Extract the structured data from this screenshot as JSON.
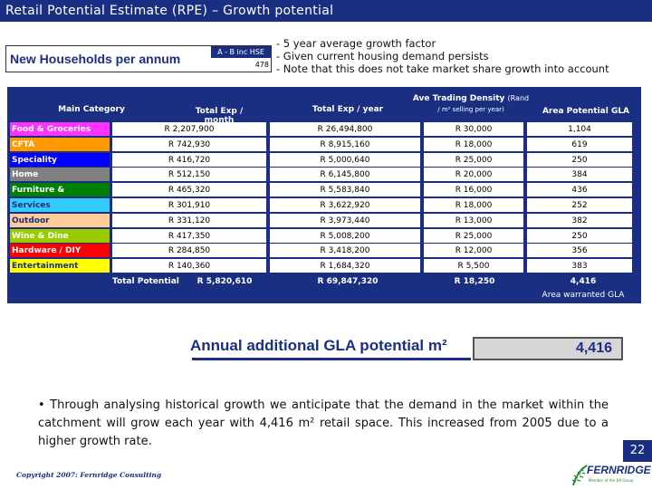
{
  "title": "Retail Potential Estimate (RPE) – Growth potential",
  "new_households": {
    "label": "New Households per annum",
    "header": "A - B inc HSE",
    "value": "478"
  },
  "notes": [
    "- 5 year average growth factor",
    "- Given current housing demand persists",
    "- Note that this does not take market share growth into account"
  ],
  "table": {
    "headers": {
      "main_category": "Main Category",
      "total_exp_month": "Total Exp / month",
      "total_exp_year": "Total Exp / year",
      "ave_trading_density": "Ave Trading Density",
      "ave_trading_density_unit": "(Rand",
      "ave_trading_density_sub": "/ m² selling per year)",
      "area_potential_gla": "Area Potential GLA"
    },
    "rows": [
      {
        "category": "Food & Groceries",
        "color": "#ff33ff",
        "text_color": "#ffffff",
        "exp_month": "R 2,207,900",
        "exp_year": "R 26,494,800",
        "density": "R 30,000",
        "gla": "1,104"
      },
      {
        "category": "CFTA",
        "color": "#ff9900",
        "text_color": "#ffffff",
        "exp_month": "R 742,930",
        "exp_year": "R 8,915,160",
        "density": "R 18,000",
        "gla": "619"
      },
      {
        "category": "Speciality",
        "color": "#0000ff",
        "text_color": "#ffffff",
        "exp_month": "R 416,720",
        "exp_year": "R 5,000,640",
        "density": "R 25,000",
        "gla": "250"
      },
      {
        "category": "Home",
        "color": "#808080",
        "text_color": "#ffffff",
        "exp_month": "R 512,150",
        "exp_year": "R 6,145,800",
        "density": "R 20,000",
        "gla": "384"
      },
      {
        "category": "Furniture & Appliances",
        "color": "#008000",
        "text_color": "#ffffff",
        "exp_month": "R 465,320",
        "exp_year": "R 5,583,840",
        "density": "R 16,000",
        "gla": "436"
      },
      {
        "category": "Services",
        "color": "#33ccff",
        "text_color": "#1a2f82",
        "exp_month": "R 301,910",
        "exp_year": "R 3,622,920",
        "density": "R 18,000",
        "gla": "252"
      },
      {
        "category": "Outdoor",
        "color": "#ffcc99",
        "text_color": "#1a2f82",
        "exp_month": "R 331,120",
        "exp_year": "R 3,973,440",
        "density": "R 13,000",
        "gla": "382"
      },
      {
        "category": "Wine & Dine",
        "color": "#99cc00",
        "text_color": "#ffffff",
        "exp_month": "R 417,350",
        "exp_year": "R 5,008,200",
        "density": "R 25,000",
        "gla": "250"
      },
      {
        "category": "Hardware / DIY",
        "color": "#ff0000",
        "text_color": "#ffffff",
        "exp_month": "R 284,850",
        "exp_year": "R 3,418,200",
        "density": "R 12,000",
        "gla": "356"
      },
      {
        "category": "Entertainment",
        "color": "#ffff00",
        "text_color": "#1a2f82",
        "exp_month": "R 140,360",
        "exp_year": "R 1,684,320",
        "density": "R 5,500",
        "gla": "383"
      }
    ],
    "total": {
      "label": "Total Potential",
      "exp_month": "R 5,820,610",
      "exp_year": "R 69,847,320",
      "density": "R 18,250",
      "gla": "4,416",
      "gla_note": "Area warranted GLA"
    }
  },
  "annual_gla": {
    "label": "Annual additional GLA potential m²",
    "value": "4,416"
  },
  "bullet_text": "• Through analysing historical growth we anticipate that the demand in the market within the catchment will grow each year with 4,416 m² retail space. This increased from 2005 due to a higher growth rate.",
  "footer": "Copyright 2007: Fernridge Consulting",
  "page_number": "22",
  "logo": {
    "name": "FERNRIDGE",
    "tagline": "Member of the JHI Group"
  },
  "colors": {
    "navy": "#1a2f82",
    "logo_green": "#2a8a3a"
  }
}
